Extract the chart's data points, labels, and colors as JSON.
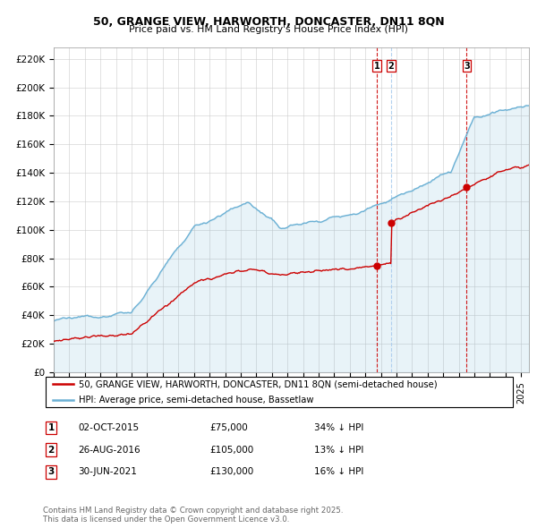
{
  "title1": "50, GRANGE VIEW, HARWORTH, DONCASTER, DN11 8QN",
  "title2": "Price paid vs. HM Land Registry's House Price Index (HPI)",
  "ylabel_ticks": [
    "£0",
    "£20K",
    "£40K",
    "£60K",
    "£80K",
    "£100K",
    "£120K",
    "£140K",
    "£160K",
    "£180K",
    "£200K",
    "£220K"
  ],
  "ytick_values": [
    0,
    20000,
    40000,
    60000,
    80000,
    100000,
    120000,
    140000,
    160000,
    180000,
    200000,
    220000
  ],
  "ylim": [
    0,
    228000
  ],
  "xlim_start": 1995.0,
  "xlim_end": 2025.5,
  "hpi_color": "#6ab0d4",
  "hpi_fill_color": "#d6eaf8",
  "price_color": "#cc0000",
  "vline1_color": "#cc0000",
  "vline2_color": "#aaccee",
  "vline3_color": "#cc0000",
  "transactions": [
    {
      "label": "1",
      "date": "02-OCT-2015",
      "year": 2015.75,
      "price": 75000,
      "price_str": "£75,000",
      "pct": "34% ↓ HPI"
    },
    {
      "label": "2",
      "date": "26-AUG-2016",
      "year": 2016.65,
      "price": 105000,
      "price_str": "£105,000",
      "pct": "13% ↓ HPI"
    },
    {
      "label": "3",
      "date": "30-JUN-2021",
      "year": 2021.5,
      "price": 130000,
      "price_str": "£130,000",
      "pct": "16% ↓ HPI"
    }
  ],
  "legend_line1": "50, GRANGE VIEW, HARWORTH, DONCASTER, DN11 8QN (semi-detached house)",
  "legend_line2": "HPI: Average price, semi-detached house, Bassetlaw",
  "footnote": "Contains HM Land Registry data © Crown copyright and database right 2025.\nThis data is licensed under the Open Government Licence v3.0."
}
